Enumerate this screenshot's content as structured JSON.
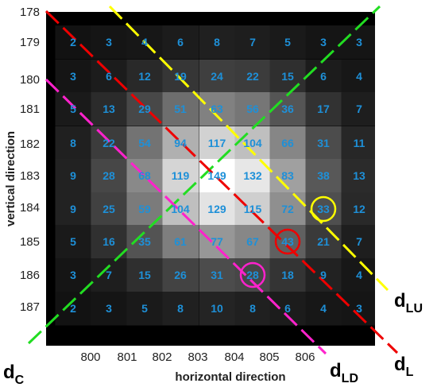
{
  "y_axis_label": "vertical direction",
  "x_axis_label": "horizontal direction",
  "y_ticks": [
    "178",
    "179",
    "180",
    "181",
    "182",
    "183",
    "184",
    "185",
    "186",
    "187"
  ],
  "x_ticks": [
    "800",
    "801",
    "802",
    "803",
    "804",
    "805",
    "806"
  ],
  "grid": [
    [
      2,
      3,
      4,
      6,
      8,
      7,
      5,
      3,
      3
    ],
    [
      3,
      6,
      12,
      19,
      24,
      22,
      15,
      6,
      4
    ],
    [
      5,
      13,
      29,
      51,
      63,
      56,
      36,
      17,
      7
    ],
    [
      8,
      22,
      54,
      94,
      117,
      104,
      66,
      31,
      11
    ],
    [
      9,
      28,
      68,
      119,
      149,
      132,
      83,
      38,
      13
    ],
    [
      9,
      25,
      59,
      104,
      129,
      115,
      72,
      33,
      12
    ],
    [
      5,
      16,
      35,
      61,
      77,
      67,
      43,
      21,
      7
    ],
    [
      3,
      7,
      15,
      26,
      31,
      28,
      18,
      9,
      4
    ],
    [
      2,
      3,
      5,
      8,
      10,
      8,
      6,
      4,
      3
    ]
  ],
  "grid_max": 149,
  "lines": [
    {
      "id": "dC",
      "label_main": "d",
      "label_sub": "C",
      "color": "#22dd22"
    },
    {
      "id": "dLU",
      "label_main": "d",
      "label_sub": "LU",
      "color": "#ffff00"
    },
    {
      "id": "dL",
      "label_main": "d",
      "label_sub": "L",
      "color": "#ee0000"
    },
    {
      "id": "dLD",
      "label_main": "d",
      "label_sub": "LD",
      "color": "#ff22cc"
    }
  ],
  "highlighted_cells": [
    {
      "value": 33,
      "color": "#ffff00"
    },
    {
      "value": 43,
      "color": "#ee0000"
    },
    {
      "value": 28,
      "color": "#ff22cc"
    }
  ],
  "colors": {
    "cell_value": "#1e90d8",
    "background": "#000000"
  }
}
